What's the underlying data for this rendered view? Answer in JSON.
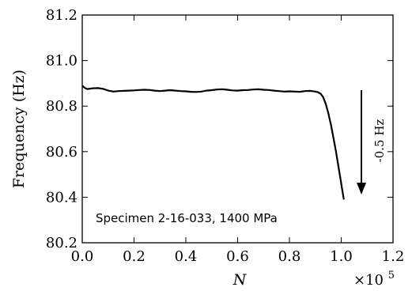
{
  "chart_data": {
    "type": "line",
    "xlabel": "N",
    "ylabel": "Frequency (Hz)",
    "x_multiplier_label": "×10",
    "x_multiplier_exponent": "5",
    "xlim": [
      0.0,
      1.2
    ],
    "ylim": [
      80.2,
      81.2
    ],
    "x_ticks": [
      "0.0",
      "0.2",
      "0.4",
      "0.6",
      "0.8",
      "1.0",
      "1.2"
    ],
    "y_ticks": [
      "80.2",
      "80.4",
      "80.6",
      "80.8",
      "81.0",
      "81.2"
    ],
    "grid": false,
    "legend": "none",
    "annotations": {
      "specimen": "Specimen 2-16-033, 1400 MPa",
      "drop": "-0.5 Hz"
    },
    "series": [
      {
        "color": "#000000",
        "x": [
          0.0,
          0.01,
          0.02,
          0.04,
          0.06,
          0.08,
          0.1,
          0.12,
          0.14,
          0.16,
          0.18,
          0.2,
          0.22,
          0.24,
          0.26,
          0.28,
          0.3,
          0.32,
          0.34,
          0.36,
          0.38,
          0.4,
          0.42,
          0.44,
          0.46,
          0.48,
          0.5,
          0.52,
          0.54,
          0.56,
          0.58,
          0.6,
          0.62,
          0.64,
          0.66,
          0.68,
          0.7,
          0.72,
          0.74,
          0.76,
          0.78,
          0.8,
          0.82,
          0.84,
          0.86,
          0.88,
          0.9,
          0.91,
          0.92,
          0.93,
          0.94,
          0.95,
          0.96,
          0.97,
          0.98,
          0.99,
          1.0,
          1.01
        ],
        "y": [
          80.89,
          80.88,
          80.875,
          80.878,
          80.879,
          80.876,
          80.868,
          80.864,
          80.866,
          80.867,
          80.868,
          80.869,
          80.871,
          80.872,
          80.871,
          80.868,
          80.866,
          80.868,
          80.87,
          80.868,
          80.866,
          80.865,
          80.863,
          80.862,
          80.864,
          80.868,
          80.87,
          80.873,
          80.874,
          80.872,
          80.869,
          80.868,
          80.87,
          80.871,
          80.873,
          80.874,
          80.872,
          80.871,
          80.868,
          80.866,
          80.864,
          80.865,
          80.864,
          80.863,
          80.866,
          80.867,
          80.864,
          80.861,
          80.855,
          80.84,
          80.81,
          80.77,
          80.72,
          80.66,
          80.6,
          80.53,
          80.46,
          80.39
        ]
      }
    ]
  }
}
